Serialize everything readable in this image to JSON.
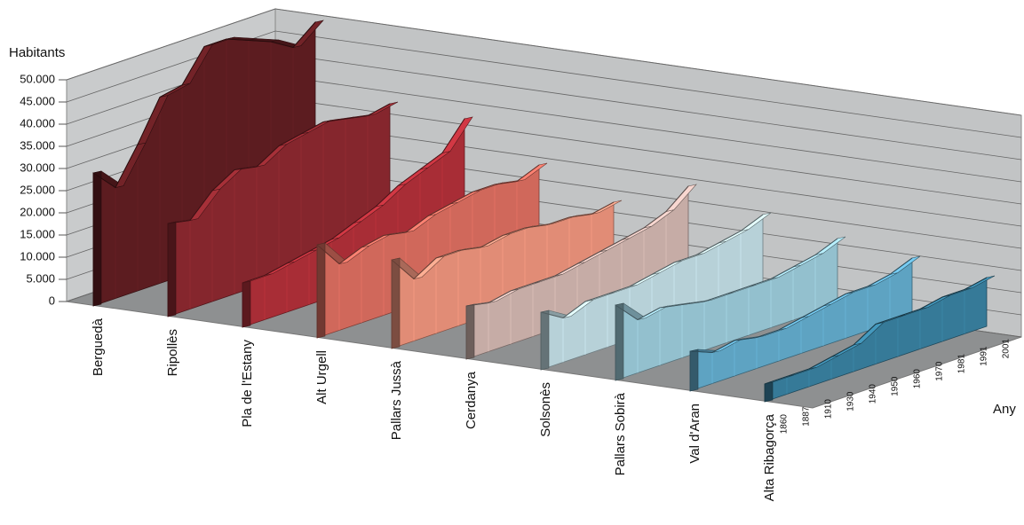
{
  "chart_data": {
    "type": "ribbon",
    "y_label": "Habitants",
    "x_label": "Any",
    "categories": [
      "1860",
      "1887",
      "1910",
      "1930",
      "1940",
      "1950",
      "1960",
      "1970",
      "1981",
      "1991",
      "2001"
    ],
    "ylim": [
      0,
      50000
    ],
    "yticks": [
      0,
      {
        "value": 5000,
        "label": "5.000"
      },
      {
        "value": 10000,
        "label": "10.000"
      },
      {
        "value": 15000,
        "label": "15.000"
      },
      {
        "value": 20000,
        "label": "20.000"
      },
      {
        "value": 25000,
        "label": "25.000"
      },
      {
        "value": 30000,
        "label": "30.000"
      },
      {
        "value": 35000,
        "label": "35.000"
      },
      {
        "value": 40000,
        "label": "40.000"
      },
      {
        "value": 45000,
        "label": "45.000"
      },
      {
        "value": 50000,
        "label": "50.000"
      }
    ],
    "grid": true,
    "series": [
      {
        "name": "Berguedà",
        "color": "#5c1c20",
        "values": [
          30000,
          25000,
          33000,
          42000,
          43000,
          50000,
          50000,
          48000,
          46000,
          43000,
          47000
        ]
      },
      {
        "name": "Ripollès",
        "color": "#85262d",
        "values": [
          21000,
          20000,
          25000,
          28000,
          27000,
          30000,
          31000,
          32000,
          31000,
          30000,
          31000
        ]
      },
      {
        "name": "Pla de l'Estany",
        "color": "#a82d36",
        "values": [
          10000,
          10000,
          11000,
          12000,
          13000,
          15000,
          17000,
          20000,
          22000,
          24000,
          30000
        ]
      },
      {
        "name": "Alt Urgell",
        "color": "#d0685b",
        "values": [
          21000,
          15000,
          17000,
          18000,
          17000,
          19000,
          20000,
          21000,
          21000,
          20000,
          22000
        ]
      },
      {
        "name": "Pallars Jussà",
        "color": "#e18c76",
        "values": [
          20000,
          14000,
          17000,
          17000,
          16000,
          17000,
          17000,
          16000,
          16000,
          15000,
          16000
        ]
      },
      {
        "name": "Cerdanya",
        "color": "#c6aca6",
        "values": [
          12000,
          11000,
          12000,
          12000,
          12000,
          13000,
          14000,
          15000,
          16000,
          18000,
          22000
        ]
      },
      {
        "name": "Solsonès",
        "color": "#b7d1d8",
        "values": [
          13000,
          10000,
          12000,
          12000,
          12000,
          13000,
          14000,
          14000,
          15000,
          16000,
          18000
        ]
      },
      {
        "name": "Pallars Sobirà",
        "color": "#93c0ce",
        "values": [
          17000,
          12000,
          13000,
          12000,
          11000,
          11000,
          11000,
          11000,
          12000,
          13000,
          15000
        ]
      },
      {
        "name": "Val d'Aran",
        "color": "#5ea3c2",
        "values": [
          9000,
          7000,
          8000,
          7000,
          7000,
          8000,
          9000,
          10000,
          10000,
          11000,
          13000
        ]
      },
      {
        "name": "Alta Ribagorça",
        "color": "#367a98",
        "values": [
          4000,
          4000,
          4000,
          5000,
          6000,
          9000,
          9000,
          9000,
          10000,
          10000,
          11000
        ]
      }
    ]
  }
}
